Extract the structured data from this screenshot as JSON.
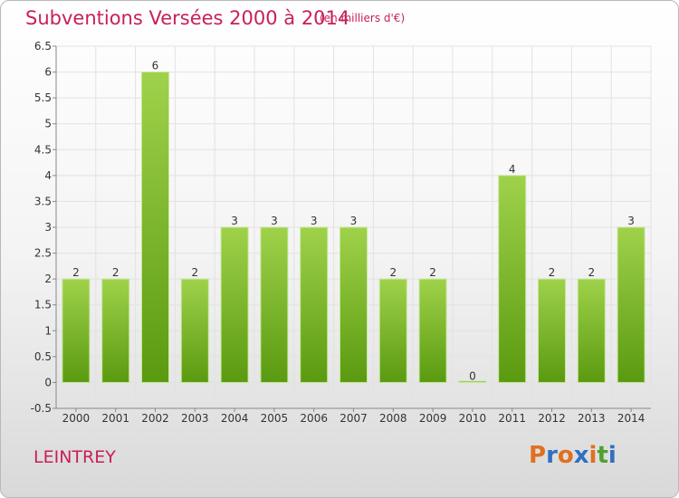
{
  "header": {
    "title": "Subventions Versées 2000 à 2014",
    "subtitle": "(en milliers d'€)"
  },
  "footer": {
    "place": "LEINTREY",
    "logo": [
      "P",
      "r",
      "o",
      "x",
      "i",
      "t",
      "i"
    ]
  },
  "colors": {
    "title": "#c8205a",
    "bar_top": "#9fd24a",
    "bar_bottom": "#5a9a10",
    "logo": [
      "#e07020",
      "#3070c0",
      "#e07020",
      "#3070c0",
      "#e07020",
      "#50a030",
      "#3070c0"
    ]
  },
  "chart_data": {
    "type": "bar",
    "title": "Subventions Versées 2000 à 2014",
    "subtitle": "(en milliers d'€)",
    "categories": [
      "2000",
      "2001",
      "2002",
      "2003",
      "2004",
      "2005",
      "2006",
      "2007",
      "2008",
      "2009",
      "2010",
      "2011",
      "2012",
      "2013",
      "2014"
    ],
    "values": [
      2,
      2,
      6,
      2,
      3,
      3,
      3,
      3,
      2,
      2,
      0,
      4,
      2,
      2,
      3
    ],
    "data_labels": [
      "2",
      "2",
      "6",
      "2",
      "3",
      "3",
      "3",
      "3",
      "2",
      "2",
      "0",
      "4",
      "2",
      "2",
      "3"
    ],
    "ylim": [
      -0.5,
      6.5
    ],
    "yticks": [
      -0.5,
      0,
      0.5,
      1,
      1.5,
      2,
      2.5,
      3,
      3.5,
      4,
      4.5,
      5,
      5.5,
      6,
      6.5
    ],
    "ytick_labels": [
      "-0.5",
      "0",
      "0.5",
      "1",
      "1.5",
      "2",
      "2.5",
      "3",
      "3.5",
      "4",
      "4.5",
      "5",
      "5.5",
      "6",
      "6.5"
    ],
    "grid": true,
    "legend": "none"
  }
}
